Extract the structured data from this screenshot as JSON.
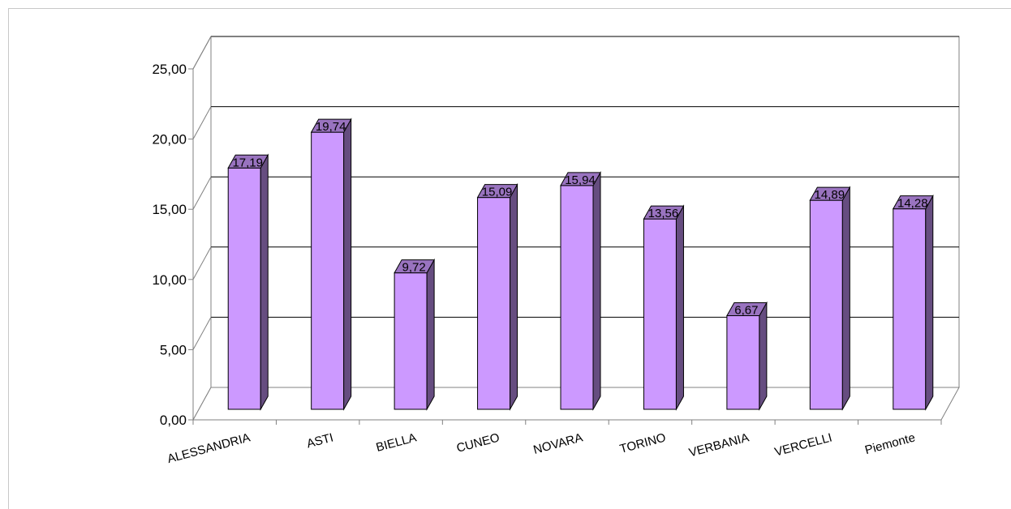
{
  "chart_data": {
    "type": "bar",
    "title": "",
    "xlabel": "",
    "ylabel": "",
    "categories": [
      "ALESSANDRIA",
      "ASTI",
      "BIELLA",
      "CUNEO",
      "NOVARA",
      "TORINO",
      "VERBANIA",
      "VERCELLI",
      "Piemonte"
    ],
    "values": [
      17.19,
      19.74,
      9.72,
      15.09,
      15.94,
      13.56,
      6.67,
      14.89,
      14.28
    ],
    "data_labels": [
      "17,19",
      "19,74",
      "9,72",
      "15,09",
      "15,94",
      "13,56",
      "6,67",
      "14,89",
      "14,28"
    ],
    "y_ticks": [
      "0,00",
      "5,00",
      "10,00",
      "15,00",
      "20,00",
      "25,00"
    ],
    "ylim": [
      0,
      25
    ],
    "grid": true,
    "legend": "none",
    "style": "3d-column",
    "colors": {
      "bar_front": "#cc99ff",
      "bar_side": "#664d80",
      "bar_top": "#9973bf",
      "wall": "#ffffff",
      "grid": "#000000",
      "axis": "#808080"
    }
  }
}
